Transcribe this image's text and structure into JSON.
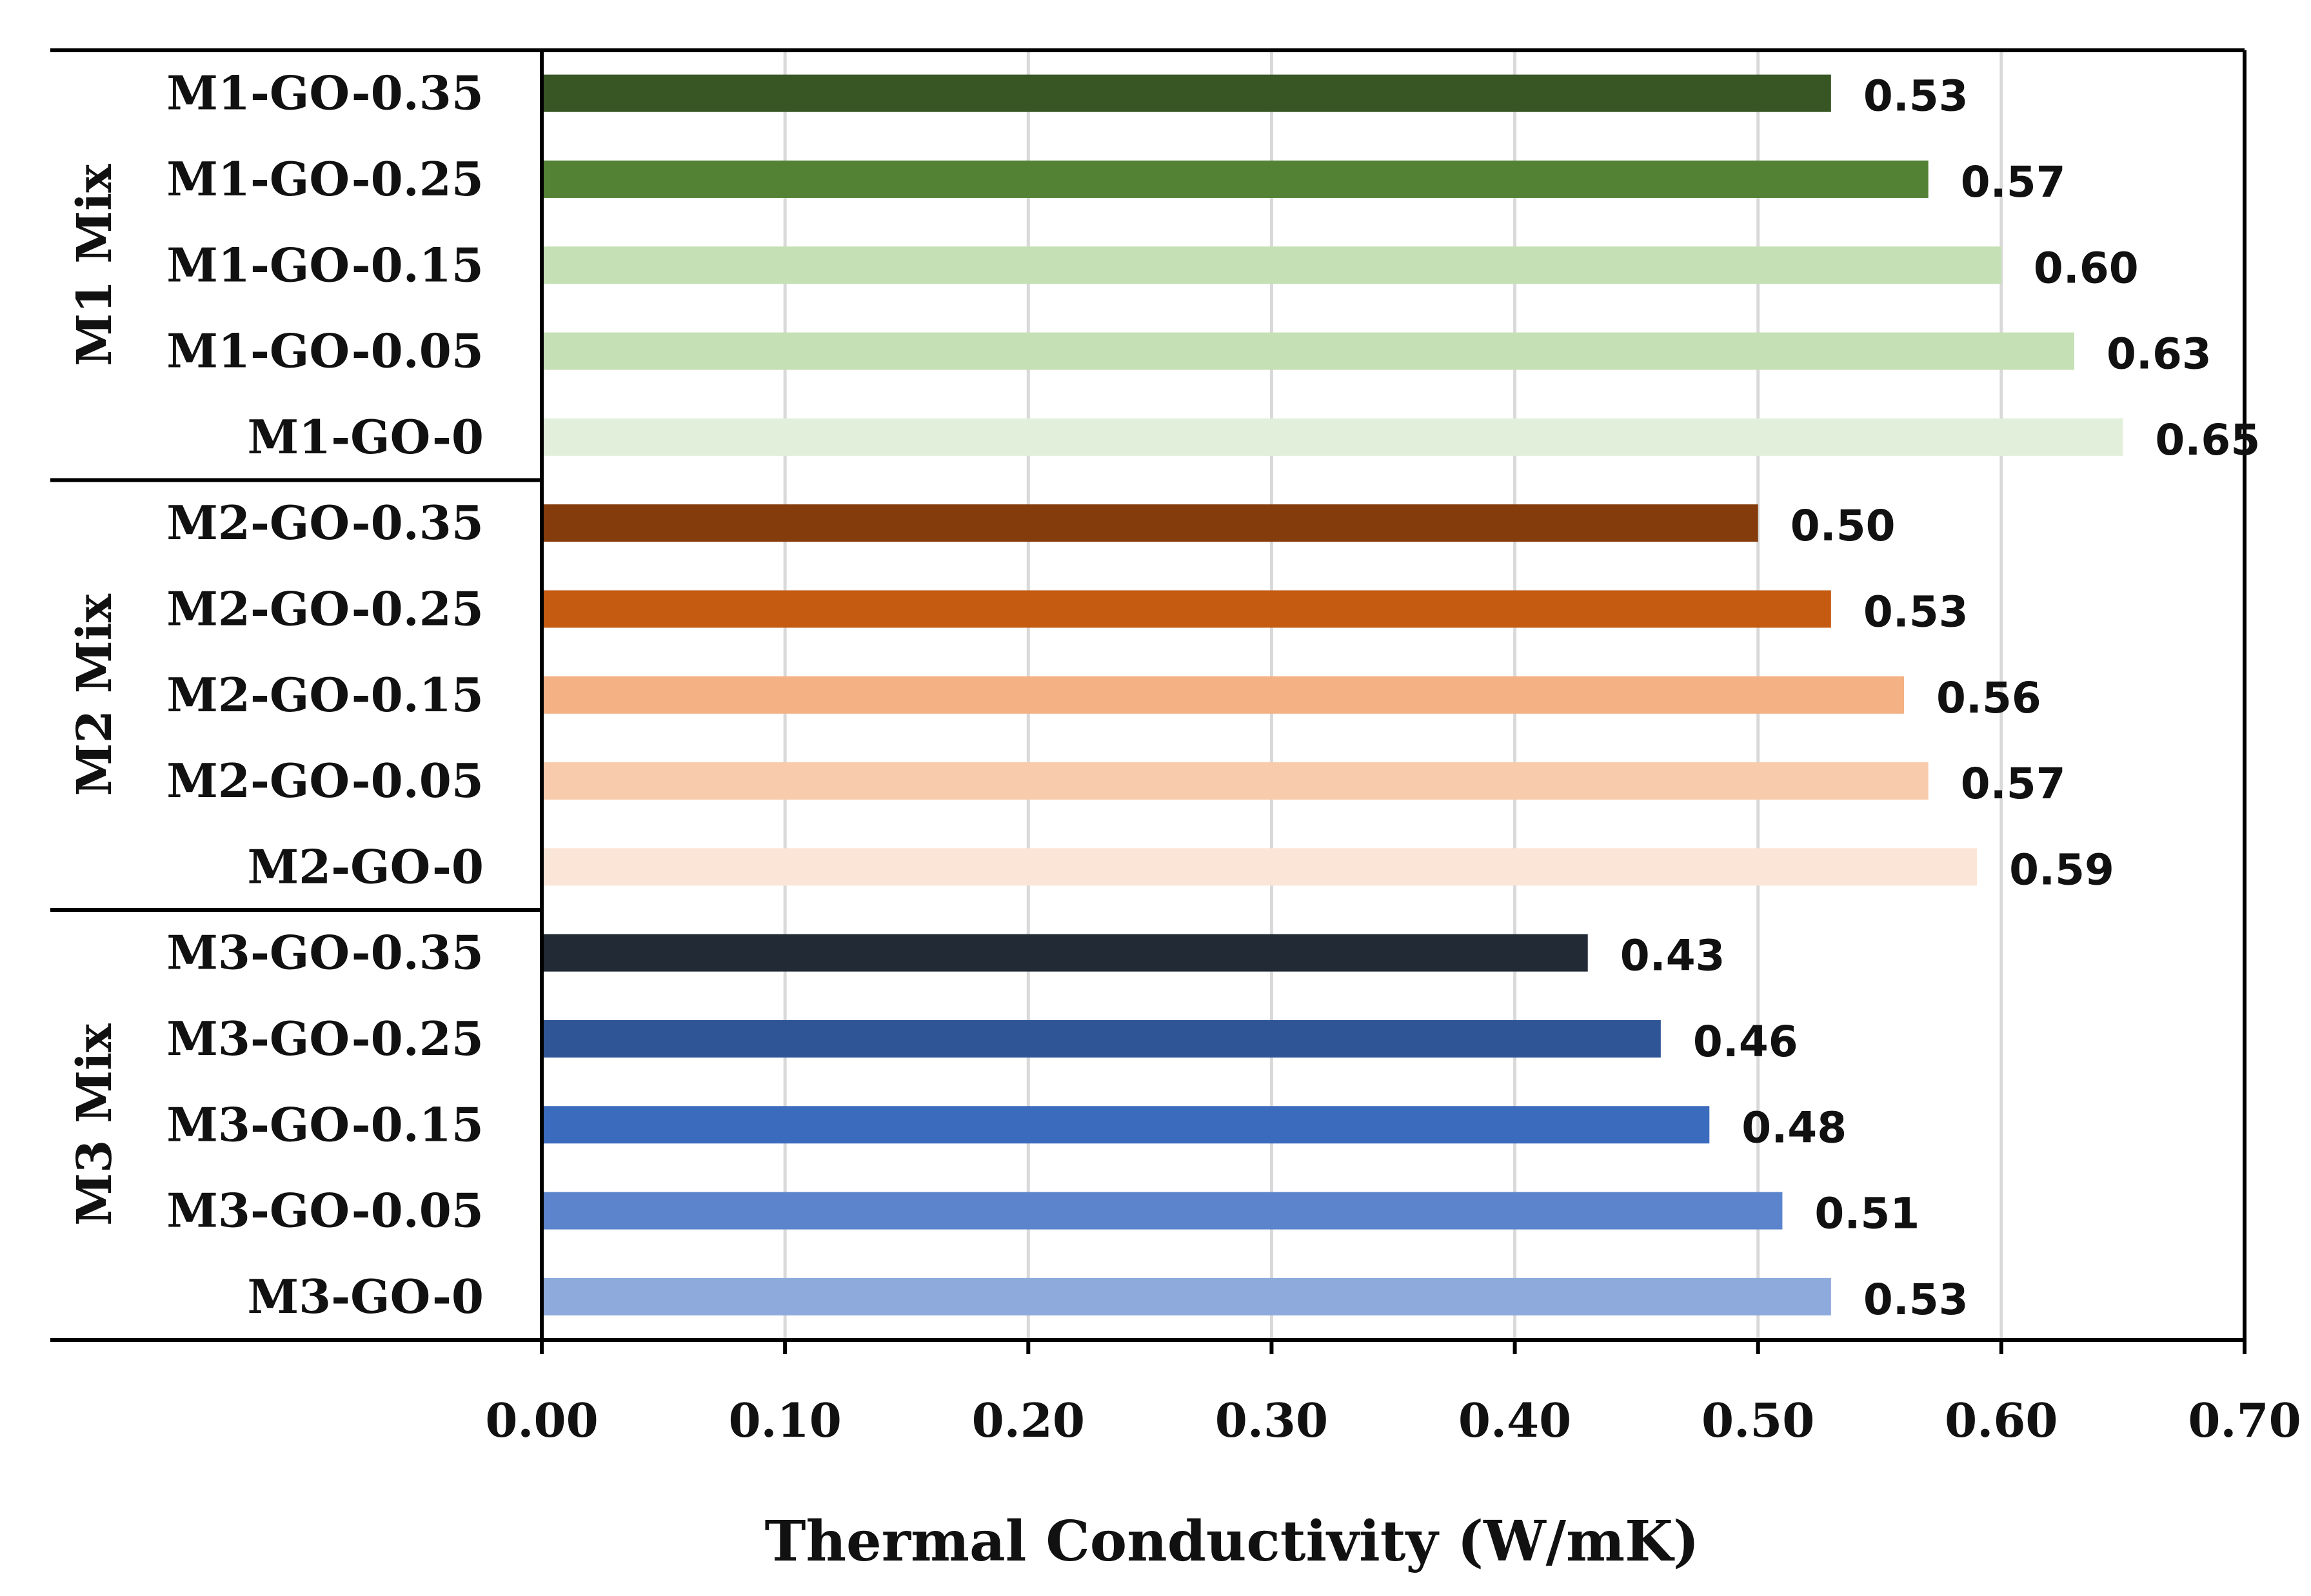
{
  "chart_data": {
    "type": "bar",
    "orientation": "horizontal",
    "xlabel": "Thermal Conductivity (W/mK)",
    "xlim": [
      0,
      0.7
    ],
    "xticks": [
      "0.00",
      "0.10",
      "0.20",
      "0.30",
      "0.40",
      "0.50",
      "0.60",
      "0.70"
    ],
    "grid": "vertical",
    "groups": [
      {
        "label": "M1 Mix",
        "categories": [
          "M1-GO-0.35",
          "M1-GO-0.25",
          "M1-GO-0.15",
          "M1-GO-0.05",
          "M1-GO-0"
        ],
        "values": [
          0.53,
          0.57,
          0.6,
          0.63,
          0.65
        ],
        "value_labels": [
          "0.53",
          "0.57",
          "0.60",
          "0.63",
          "0.65"
        ],
        "colors": [
          "#375623",
          "#548235",
          "#c5e0b4",
          "#c5e0b4",
          "#e2efda"
        ]
      },
      {
        "label": "M2 Mix",
        "categories": [
          "M2-GO-0.35",
          "M2-GO-0.25",
          "M2-GO-0.15",
          "M2-GO-0.05",
          "M2-GO-0"
        ],
        "values": [
          0.5,
          0.53,
          0.56,
          0.57,
          0.59
        ],
        "value_labels": [
          "0.50",
          "0.53",
          "0.56",
          "0.57",
          "0.59"
        ],
        "colors": [
          "#843c0c",
          "#c55a11",
          "#f4b183",
          "#f8cbad",
          "#fbe5d6"
        ]
      },
      {
        "label": "M3 Mix",
        "categories": [
          "M3-GO-0.35",
          "M3-GO-0.25",
          "M3-GO-0.15",
          "M3-GO-0.05",
          "M3-GO-0"
        ],
        "values": [
          0.43,
          0.46,
          0.48,
          0.51,
          0.53
        ],
        "value_labels": [
          "0.43",
          "0.46",
          "0.48",
          "0.51",
          "0.53"
        ],
        "colors": [
          "#222a35",
          "#2f5597",
          "#3b6bbd",
          "#5b84cc",
          "#8ea9db"
        ]
      }
    ]
  }
}
